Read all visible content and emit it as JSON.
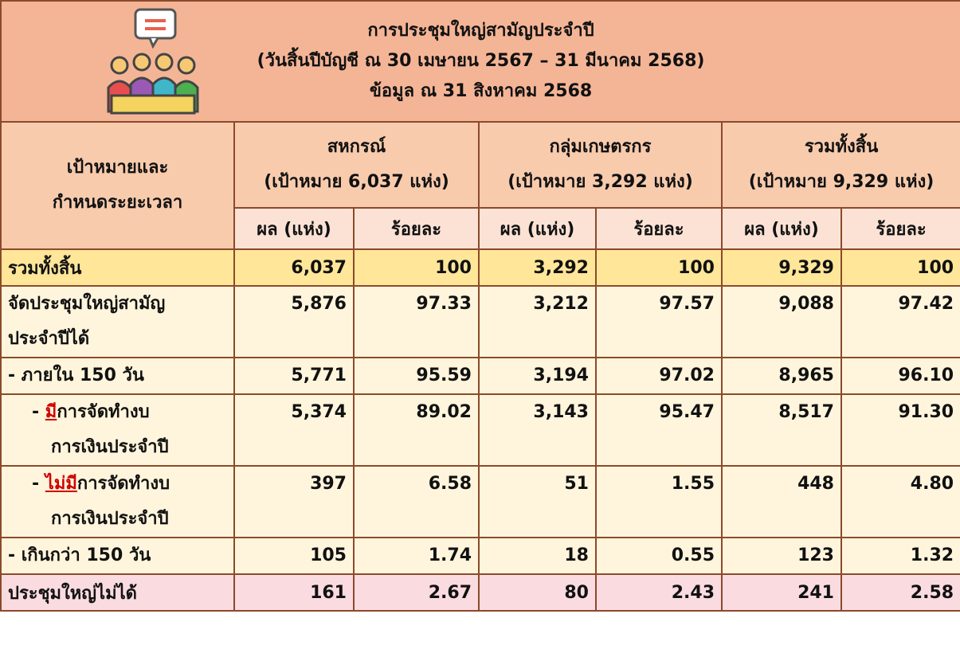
{
  "header": {
    "title_lines": [
      "การประชุมใหญ่สามัญประจำปี",
      "(วันสิ้นปีบัญชี ณ 30 เมษายน 2567 – 31 มีนาคม 2568)",
      "ข้อมูล ณ 31 สิงหาคม 2568"
    ]
  },
  "table": {
    "corner": [
      "เป้าหมายและ",
      "กำหนดระยะเวลา"
    ],
    "groups": [
      [
        "สหกรณ์",
        "(เป้าหมาย 6,037 แห่ง)"
      ],
      [
        "กลุ่มเกษตรกร",
        "(เป้าหมาย 3,292 แห่ง)"
      ],
      [
        "รวมทั้งสิ้น",
        "(เป้าหมาย 9,329 แห่ง)"
      ]
    ],
    "subheaders": [
      "ผล (แห่ง)",
      "ร้อยละ",
      "ผล (แห่ง)",
      "ร้อยละ",
      "ผล (แห่ง)",
      "ร้อยละ"
    ],
    "rows": [
      {
        "label": [
          "รวมทั้งสิ้น"
        ],
        "style": "total",
        "cells": [
          "6,037",
          "100",
          "3,292",
          "100",
          "9,329",
          "100"
        ]
      },
      {
        "label": [
          "จัดประชุมใหญ่สามัญ",
          "ประจำปีได้"
        ],
        "style": "body",
        "cells": [
          "5,876",
          "97.33",
          "3,212",
          "97.57",
          "9,088",
          "97.42"
        ]
      },
      {
        "label": [
          "- ภายใน 150 วัน"
        ],
        "style": "body",
        "cells": [
          "5,771",
          "95.59",
          "3,194",
          "97.02",
          "8,965",
          "96.10"
        ]
      },
      {
        "label": [
          "- ",
          "มี",
          "การจัดทำงบ",
          "การเงินประจำปี"
        ],
        "emphasis": 1,
        "indent": true,
        "style": "body",
        "cells": [
          "5,374",
          "89.02",
          "3,143",
          "95.47",
          "8,517",
          "91.30"
        ]
      },
      {
        "label": [
          "- ",
          "ไม่มี",
          "การจัดทำงบ",
          "การเงินประจำปี"
        ],
        "emphasis": 1,
        "indent": true,
        "style": "body",
        "cells": [
          "397",
          "6.58",
          "51",
          "1.55",
          "448",
          "4.80"
        ]
      },
      {
        "label": [
          "- เกินกว่า 150 วัน"
        ],
        "style": "body",
        "cells": [
          "105",
          "1.74",
          "18",
          "0.55",
          "123",
          "1.32"
        ]
      },
      {
        "label": [
          "ประชุมใหญ่ไม่ได้"
        ],
        "style": "fail",
        "cells": [
          "161",
          "2.67",
          "80",
          "2.43",
          "241",
          "2.58"
        ]
      }
    ]
  }
}
